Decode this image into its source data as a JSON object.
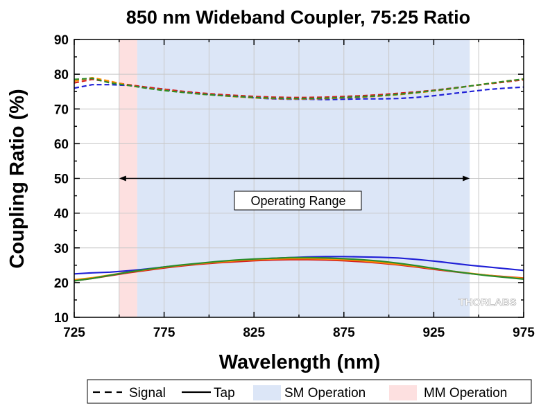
{
  "chart_data": {
    "type": "line",
    "title": "850 nm Wideband Coupler, 75:25 Ratio",
    "xlabel": "Wavelength (nm)",
    "ylabel": "Coupling Ratio (%)",
    "xlim": [
      725,
      975
    ],
    "ylim": [
      10,
      90
    ],
    "xticks": [
      725,
      775,
      825,
      875,
      925,
      975
    ],
    "yticks": [
      10,
      20,
      30,
      40,
      50,
      60,
      70,
      80,
      90
    ],
    "grid": true,
    "legend_position": "bottom",
    "regions": [
      {
        "name": "SM Operation",
        "x": [
          760,
          945
        ],
        "color": "#dce6f7"
      },
      {
        "name": "MM Operation",
        "x": [
          750,
          760
        ],
        "color": "#fde0e0"
      }
    ],
    "annotation": {
      "text": "Operating Range",
      "x_range": [
        750,
        945
      ],
      "y": 50
    },
    "legend": [
      {
        "label": "Signal",
        "style": "dashed"
      },
      {
        "label": "Tap",
        "style": "solid"
      },
      {
        "label": "SM Operation",
        "style": "patch",
        "color": "#dce6f7"
      },
      {
        "label": "MM Operation",
        "style": "patch",
        "color": "#fde0e0"
      }
    ],
    "watermark": "THORLABS",
    "x": [
      725,
      735,
      745,
      755,
      765,
      775,
      785,
      795,
      805,
      815,
      825,
      835,
      845,
      855,
      865,
      875,
      885,
      895,
      905,
      915,
      925,
      935,
      945,
      955,
      965,
      975
    ],
    "series": [
      {
        "color": "#1f1fd6",
        "style": "dashed",
        "values": [
          76.0,
          77.0,
          77.0,
          76.8,
          76.2,
          75.7,
          75.0,
          74.4,
          74.0,
          73.6,
          73.2,
          72.9,
          72.8,
          72.8,
          72.7,
          72.8,
          72.9,
          72.9,
          73.0,
          73.3,
          73.8,
          74.4,
          75.0,
          75.6,
          76.0,
          76.3
        ]
      },
      {
        "color": "#d41f1f",
        "style": "dashed",
        "values": [
          77.5,
          78.5,
          77.8,
          77.0,
          76.3,
          75.7,
          75.1,
          74.6,
          74.2,
          73.9,
          73.6,
          73.4,
          73.3,
          73.3,
          73.4,
          73.6,
          73.8,
          74.1,
          74.5,
          74.9,
          75.4,
          76.0,
          76.6,
          77.2,
          77.8,
          78.4
        ]
      },
      {
        "color": "#ff8c00",
        "style": "dashed",
        "values": [
          78.0,
          79.0,
          78.0,
          76.8,
          76.0,
          75.4,
          74.8,
          74.3,
          73.9,
          73.5,
          73.2,
          73.0,
          72.9,
          72.9,
          73.0,
          73.2,
          73.4,
          73.7,
          74.1,
          74.6,
          75.2,
          75.8,
          76.6,
          77.3,
          78.0,
          78.6
        ]
      },
      {
        "color": "#2a8c2a",
        "style": "dashed",
        "values": [
          78.5,
          78.8,
          77.5,
          76.8,
          76.0,
          75.3,
          74.8,
          74.3,
          73.9,
          73.6,
          73.3,
          73.1,
          73.0,
          73.0,
          73.1,
          73.3,
          73.5,
          73.8,
          74.2,
          74.7,
          75.3,
          75.9,
          76.6,
          77.3,
          78.0,
          78.6
        ]
      },
      {
        "color": "#1f1fd6",
        "style": "solid",
        "values": [
          22.5,
          22.8,
          23.0,
          23.4,
          23.9,
          24.5,
          25.0,
          25.5,
          25.9,
          26.3,
          26.7,
          27.0,
          27.2,
          27.4,
          27.5,
          27.5,
          27.4,
          27.3,
          27.1,
          26.7,
          26.2,
          25.6,
          25.0,
          24.5,
          24.0,
          23.5
        ]
      },
      {
        "color": "#d41f1f",
        "style": "solid",
        "values": [
          20.5,
          21.2,
          22.0,
          22.8,
          23.5,
          24.2,
          24.8,
          25.3,
          25.7,
          26.0,
          26.3,
          26.5,
          26.6,
          26.6,
          26.5,
          26.3,
          26.0,
          25.6,
          25.1,
          24.5,
          23.8,
          23.2,
          22.6,
          22.1,
          21.7,
          21.3
        ]
      },
      {
        "color": "#ff8c00",
        "style": "solid",
        "values": [
          20.8,
          21.4,
          22.2,
          23.0,
          23.7,
          24.4,
          25.0,
          25.5,
          25.9,
          26.3,
          26.6,
          26.8,
          26.9,
          26.9,
          26.8,
          26.6,
          26.3,
          25.8,
          25.3,
          24.7,
          24.0,
          23.3,
          22.7,
          22.1,
          21.6,
          21.2
        ]
      },
      {
        "color": "#2a8c2a",
        "style": "solid",
        "values": [
          20.5,
          21.2,
          22.1,
          23.0,
          23.8,
          24.5,
          25.1,
          25.6,
          26.1,
          26.5,
          26.8,
          27.0,
          27.2,
          27.2,
          27.1,
          26.9,
          26.6,
          26.2,
          25.6,
          24.9,
          24.1,
          23.3,
          22.6,
          22.0,
          21.5,
          21.0
        ]
      }
    ]
  }
}
